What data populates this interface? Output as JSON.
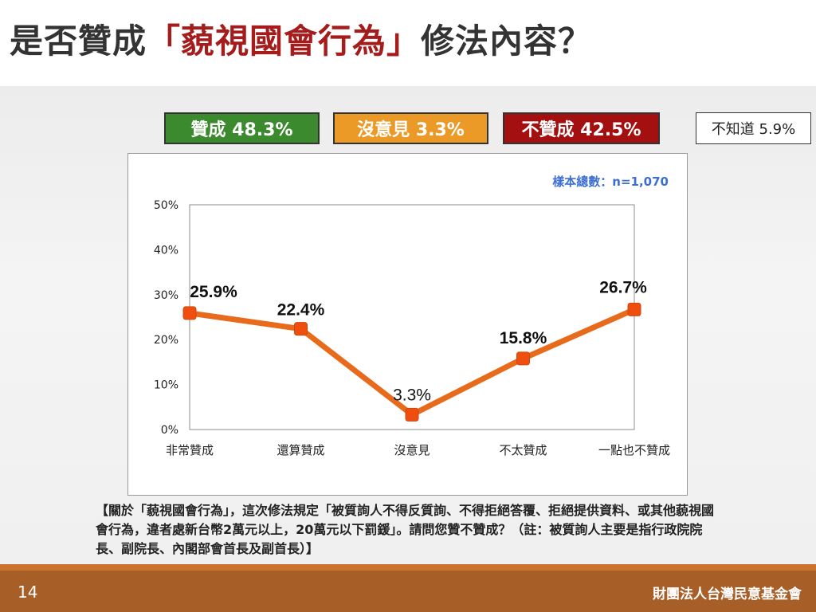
{
  "title": {
    "prefix": "是否贊成",
    "highlight": "「藐視國會行為」",
    "suffix": "修法內容？"
  },
  "summary": {
    "agree": "贊成 48.3%",
    "neutral": "沒意見 3.3%",
    "disagree": "不贊成 42.5%",
    "unknown": "不知道 5.9%"
  },
  "colors": {
    "agree": "#3c8a2e",
    "neutral": "#eb9a27",
    "disagree": "#a40f0f",
    "line": "#e86b1c",
    "marker": "#f04e0f",
    "sample_text": "#3d6fd1"
  },
  "chart_data": {
    "type": "line",
    "sample_label": "樣本總數：n=1,070",
    "categories": [
      "非常贊成",
      "還算贊成",
      "沒意見",
      "不太贊成",
      "一點也不贊成"
    ],
    "values": [
      25.9,
      22.4,
      3.3,
      15.8,
      26.7
    ],
    "data_labels": [
      "25.9%",
      "22.4%",
      "3.3%",
      "15.8%",
      "26.7%"
    ],
    "ylim": [
      0,
      50
    ],
    "yticks": [
      "0%",
      "10%",
      "20%",
      "30%",
      "40%",
      "50%"
    ],
    "ytick_values": [
      0,
      10,
      20,
      30,
      40,
      50
    ],
    "grid": false,
    "legend": "none"
  },
  "note": "【關於「藐視國會行為」，這次修法規定「被質詢人不得反質詢、不得拒絕答覆、拒絕提供資料、或其他藐視國會行為，違者處新台幣2萬元以上，20萬元以下罰鍰」。請問您贊不贊成？（註：被質詢人主要是指行政院院長、副院長、內閣部會首長及副首長）】",
  "footer": {
    "page_number": "14",
    "organization": "財團法人台灣民意基金會"
  }
}
